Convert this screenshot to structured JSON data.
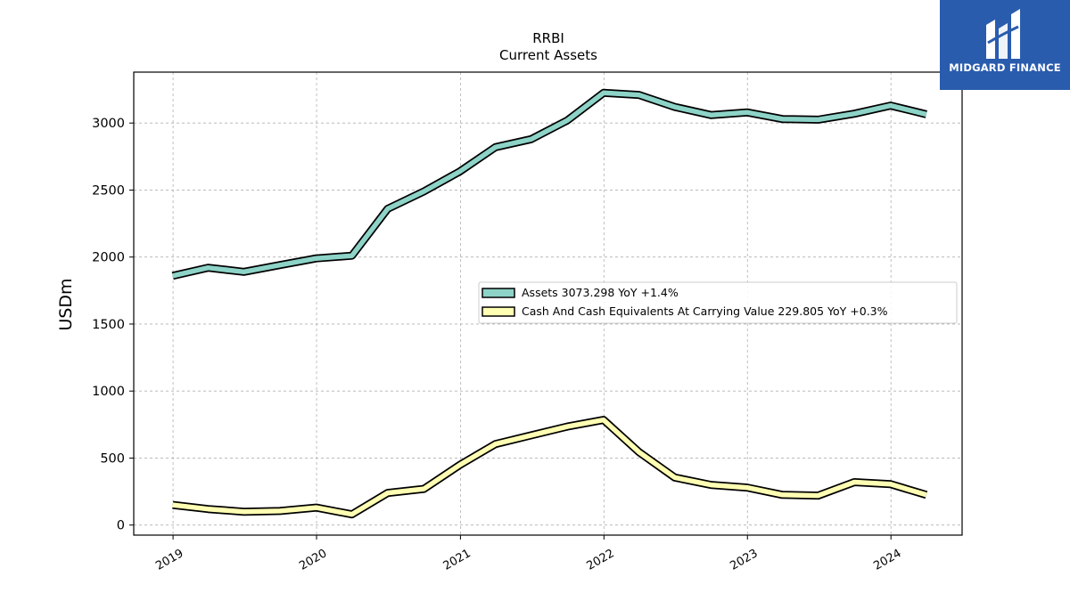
{
  "logo": {
    "name": "MIDGARD FINANCE",
    "color": "#2a5cae"
  },
  "chart_data": {
    "type": "line",
    "title": "RRBI",
    "subtitle": "Current  Assets",
    "ylabel": "USDm",
    "xlabel": "",
    "ylim": [
      -75,
      3380
    ],
    "y_ticks": [
      0,
      500,
      1000,
      1500,
      2000,
      2500,
      3000
    ],
    "x_tick_labels": [
      "2019",
      "2020",
      "2021",
      "2022",
      "2023",
      "2024"
    ],
    "grid": true,
    "legend_position": "center-right",
    "x": [
      "2018-12-31",
      "2019-03-31",
      "2019-06-30",
      "2019-09-30",
      "2019-12-31",
      "2020-03-31",
      "2020-06-30",
      "2020-09-30",
      "2020-12-31",
      "2021-03-31",
      "2021-06-30",
      "2021-09-30",
      "2021-12-31",
      "2022-03-31",
      "2022-06-30",
      "2022-09-30",
      "2022-12-31",
      "2023-03-31",
      "2023-06-30",
      "2023-09-30",
      "2023-12-31",
      "2024-03-31"
    ],
    "series": [
      {
        "name": "Assets  3073.298 YoY +1.4%",
        "color": "#8dd3c7",
        "values": [
          1860,
          1920,
          1890,
          1940,
          1990,
          2010,
          2360,
          2490,
          2640,
          2820,
          2880,
          3020,
          3225,
          3210,
          3120,
          3060,
          3080,
          3030,
          3025,
          3070,
          3130,
          3065
        ]
      },
      {
        "name": "Cash And Cash Equivalents At Carrying Value  229.805 YoY +0.3%",
        "color": "#ffffb3",
        "values": [
          150,
          120,
          100,
          105,
          130,
          80,
          240,
          270,
          450,
          605,
          670,
          735,
          785,
          545,
          355,
          300,
          280,
          225,
          220,
          320,
          305,
          225
        ]
      }
    ]
  }
}
